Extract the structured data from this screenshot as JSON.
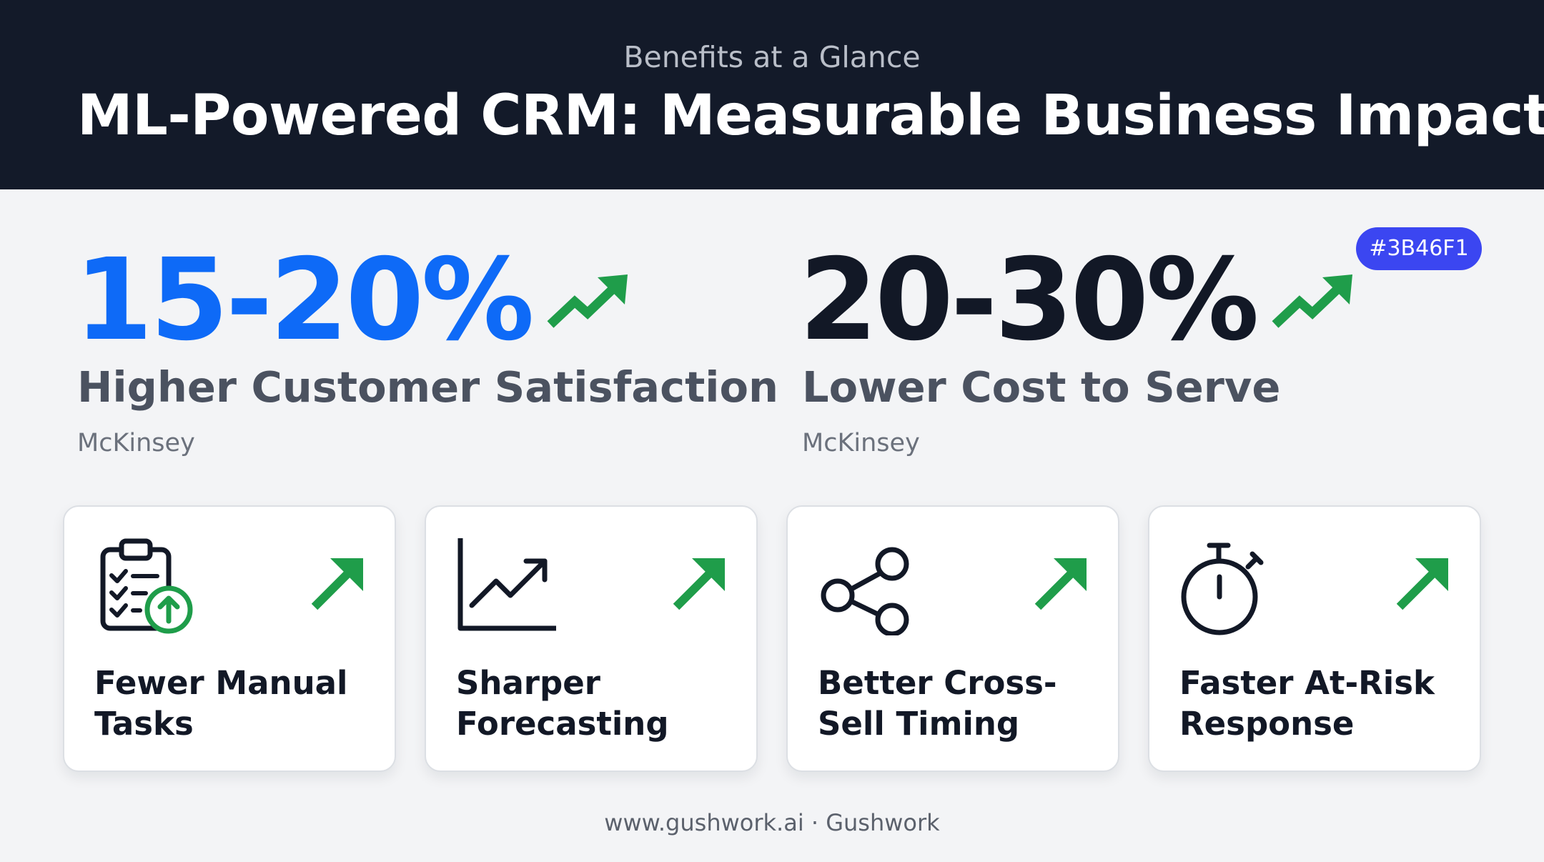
{
  "header": {
    "eyebrow": "Benefits at a Glance",
    "title": "ML-Powered CRM: Measurable Business Impact"
  },
  "stats": [
    {
      "value": "15-20%",
      "label": "Higher Customer Satisfaction",
      "source": "McKinsey",
      "value_color": "#0E6AF7",
      "icon": "trend-up-icon"
    },
    {
      "value": "20-30%",
      "label": "Lower Cost to Serve",
      "source": "McKinsey",
      "value_color": "#121826",
      "icon": "trend-up-icon"
    }
  ],
  "badge": {
    "text": "#3B46F1",
    "color": "#3B46F1"
  },
  "cards": [
    {
      "title": "Fewer Manual Tasks",
      "icon": "clipboard-checklist-icon",
      "trend_icon": "arrow-up-right-icon"
    },
    {
      "title": "Sharper Forecasting",
      "icon": "line-chart-icon",
      "trend_icon": "arrow-up-right-icon"
    },
    {
      "title": "Better Cross-Sell Timing",
      "icon": "share-nodes-icon",
      "trend_icon": "arrow-up-right-icon"
    },
    {
      "title": "Faster At-Risk Response",
      "icon": "stopwatch-icon",
      "trend_icon": "arrow-up-right-icon"
    }
  ],
  "footer": {
    "text": "www.gushwork.ai · Gushwork"
  },
  "colors": {
    "header_bg": "#131A29",
    "accent_green": "#1F9D4A",
    "page_bg": "#F3F4F6"
  }
}
